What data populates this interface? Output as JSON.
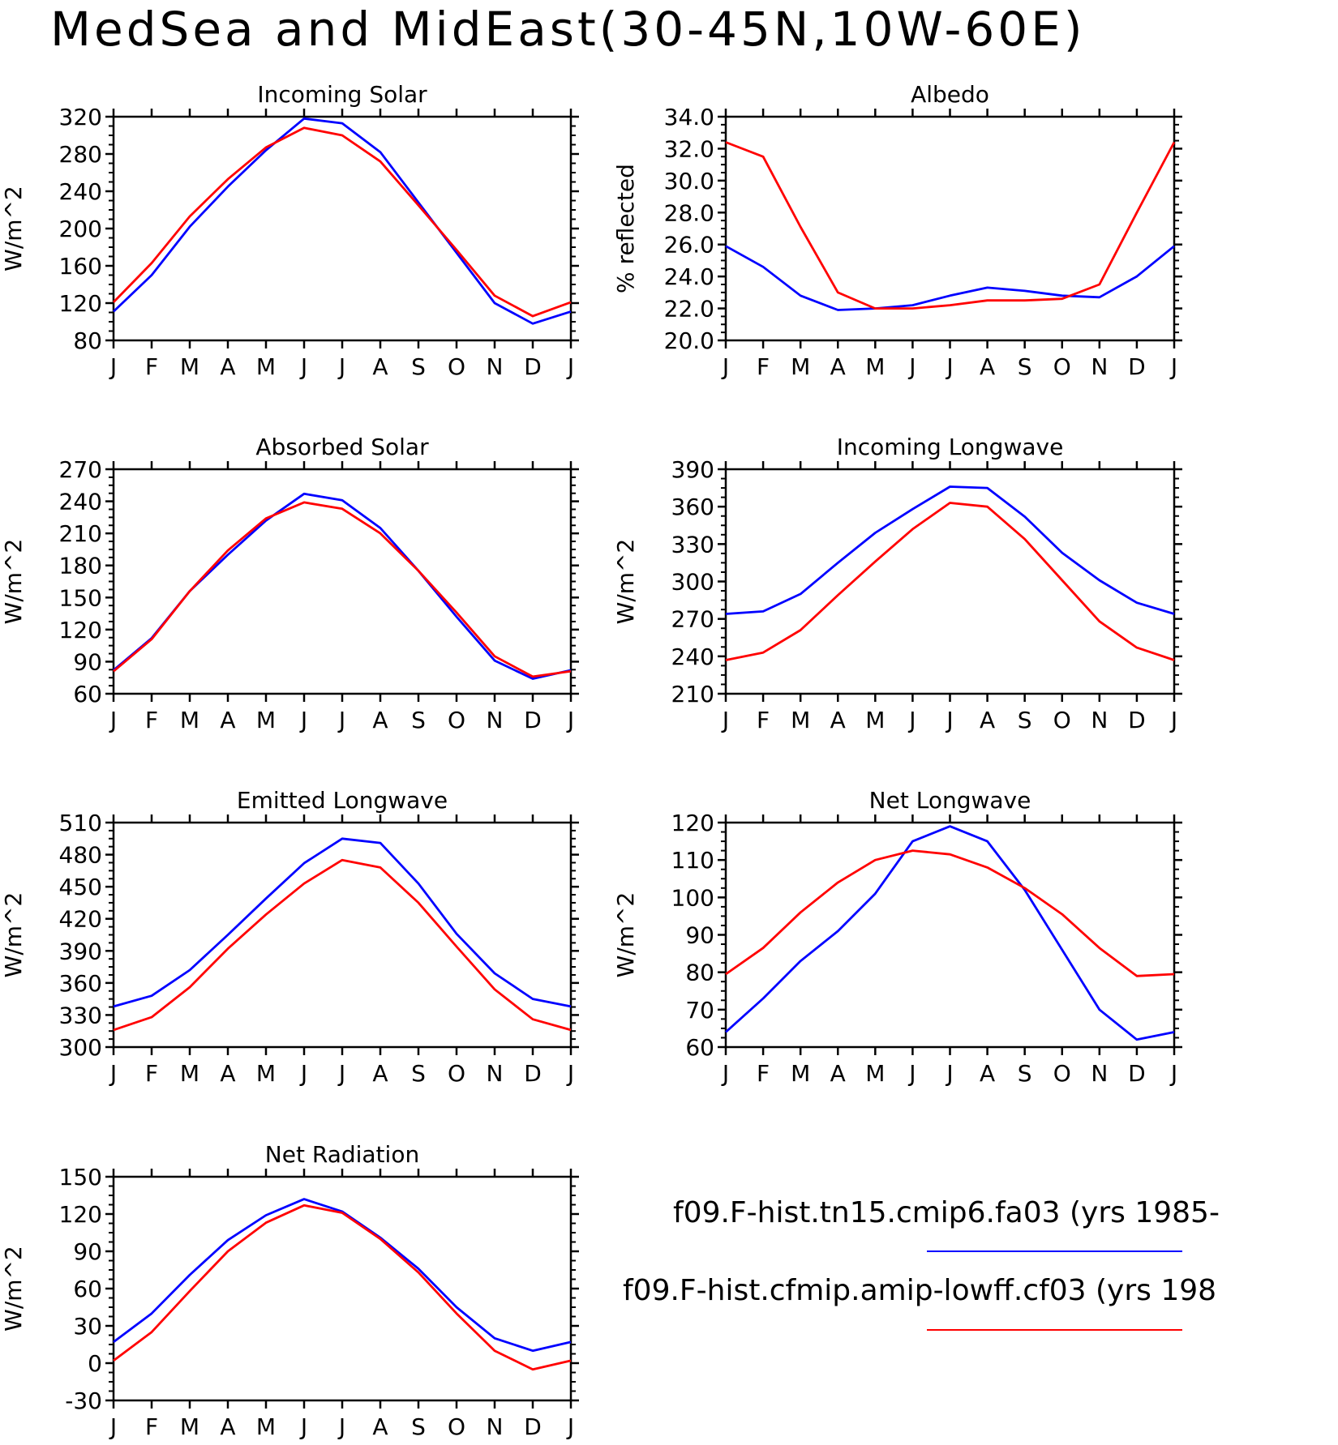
{
  "title": "MedSea and MidEast(30-45N,10W-60E)",
  "colors": {
    "case1": "#0000ff",
    "case2": "#ff0000"
  },
  "legend": [
    {
      "label": "f09.F-hist.tn15.cmip6.fa03 (yrs 1985-",
      "color": "#0000ff"
    },
    {
      "label": "f09.F-hist.cfmip.amip-lowff.cf03 (yrs 198",
      "color": "#ff0000"
    }
  ],
  "chart_data": [
    {
      "type": "line",
      "title": "Incoming Solar",
      "ylabel": "W/m^2",
      "x": [
        "J",
        "F",
        "M",
        "A",
        "M",
        "J",
        "J",
        "A",
        "S",
        "O",
        "N",
        "D",
        "J"
      ],
      "ylim": [
        80,
        320
      ],
      "yticks": [
        "80",
        "120",
        "160",
        "200",
        "240",
        "280",
        "320"
      ],
      "series": [
        {
          "color": "#0000ff",
          "values": [
            111,
            150,
            202,
            245,
            284,
            318,
            313,
            282,
            228,
            174,
            120,
            98,
            111
          ]
        },
        {
          "color": "#ff0000",
          "values": [
            121,
            163,
            213,
            253,
            287,
            308,
            300,
            272,
            225,
            177,
            128,
            106,
            121
          ]
        }
      ]
    },
    {
      "type": "line",
      "title": "Albedo",
      "ylabel": "% reflected",
      "x": [
        "J",
        "F",
        "M",
        "A",
        "M",
        "J",
        "J",
        "A",
        "S",
        "O",
        "N",
        "D",
        "J"
      ],
      "ylim": [
        20,
        34
      ],
      "yticks": [
        "20.0",
        "22.0",
        "24.0",
        "26.0",
        "28.0",
        "30.0",
        "32.0",
        "34.0"
      ],
      "series": [
        {
          "color": "#0000ff",
          "values": [
            25.9,
            24.6,
            22.8,
            21.9,
            22.0,
            22.2,
            22.8,
            23.3,
            23.1,
            22.8,
            22.7,
            24.0,
            25.9
          ]
        },
        {
          "color": "#ff0000",
          "values": [
            32.4,
            31.5,
            27.1,
            23.0,
            22.0,
            22.0,
            22.2,
            22.5,
            22.5,
            22.6,
            23.5,
            28.0,
            32.4
          ]
        }
      ]
    },
    {
      "type": "line",
      "title": "Absorbed Solar",
      "ylabel": "W/m^2",
      "x": [
        "J",
        "F",
        "M",
        "A",
        "M",
        "J",
        "J",
        "A",
        "S",
        "O",
        "N",
        "D",
        "J"
      ],
      "ylim": [
        60,
        270
      ],
      "yticks": [
        "60",
        "90",
        "120",
        "150",
        "180",
        "210",
        "240",
        "270"
      ],
      "series": [
        {
          "color": "#0000ff",
          "values": [
            82,
            112,
            156,
            190,
            222,
            247,
            241,
            215,
            175,
            132,
            91,
            74,
            82
          ]
        },
        {
          "color": "#ff0000",
          "values": [
            81,
            111,
            156,
            194,
            224,
            239,
            233,
            210,
            175,
            136,
            95,
            76,
            81
          ]
        }
      ]
    },
    {
      "type": "line",
      "title": "Incoming Longwave",
      "ylabel": "W/m^2",
      "x": [
        "J",
        "F",
        "M",
        "A",
        "M",
        "J",
        "J",
        "A",
        "S",
        "O",
        "N",
        "D",
        "J"
      ],
      "ylim": [
        210,
        390
      ],
      "yticks": [
        "210",
        "240",
        "270",
        "300",
        "330",
        "360",
        "390"
      ],
      "series": [
        {
          "color": "#0000ff",
          "values": [
            274,
            276,
            290,
            315,
            339,
            358,
            376,
            375,
            352,
            323,
            301,
            283,
            274
          ]
        },
        {
          "color": "#ff0000",
          "values": [
            237,
            243,
            261,
            289,
            316,
            342,
            363,
            360,
            334,
            301,
            268,
            247,
            237
          ]
        }
      ]
    },
    {
      "type": "line",
      "title": "Emitted Longwave",
      "ylabel": "W/m^2",
      "x": [
        "J",
        "F",
        "M",
        "A",
        "M",
        "J",
        "J",
        "A",
        "S",
        "O",
        "N",
        "D",
        "J"
      ],
      "ylim": [
        300,
        510
      ],
      "yticks": [
        "300",
        "330",
        "360",
        "390",
        "420",
        "450",
        "480",
        "510"
      ],
      "series": [
        {
          "color": "#0000ff",
          "values": [
            338,
            348,
            372,
            405,
            439,
            472,
            495,
            491,
            453,
            406,
            369,
            345,
            338
          ]
        },
        {
          "color": "#ff0000",
          "values": [
            316,
            328,
            356,
            392,
            424,
            453,
            475,
            468,
            435,
            394,
            354,
            326,
            316
          ]
        }
      ]
    },
    {
      "type": "line",
      "title": "Net Longwave",
      "ylabel": "W/m^2",
      "x": [
        "J",
        "F",
        "M",
        "A",
        "M",
        "J",
        "J",
        "A",
        "S",
        "O",
        "N",
        "D",
        "J"
      ],
      "ylim": [
        60,
        120
      ],
      "yticks": [
        "60",
        "70",
        "80",
        "90",
        "100",
        "110",
        "120"
      ],
      "series": [
        {
          "color": "#0000ff",
          "values": [
            64,
            73,
            83,
            91,
            101,
            115,
            119,
            115,
            102,
            86,
            70,
            62,
            64
          ]
        },
        {
          "color": "#ff0000",
          "values": [
            79.5,
            86.5,
            96,
            104,
            110,
            112.5,
            111.5,
            108,
            102.5,
            95.5,
            86.5,
            79,
            79.5
          ]
        }
      ]
    },
    {
      "type": "line",
      "title": "Net Radiation",
      "ylabel": "W/m^2",
      "x": [
        "J",
        "F",
        "M",
        "A",
        "M",
        "J",
        "J",
        "A",
        "S",
        "O",
        "N",
        "D",
        "J"
      ],
      "ylim": [
        -30,
        150
      ],
      "yticks": [
        "-30",
        "0",
        "30",
        "60",
        "90",
        "120",
        "150"
      ],
      "series": [
        {
          "color": "#0000ff",
          "values": [
            17,
            40,
            71,
            99,
            119,
            132,
            122,
            101,
            76,
            45,
            20,
            10,
            17
          ]
        },
        {
          "color": "#ff0000",
          "values": [
            2,
            25,
            58,
            90,
            113,
            127,
            121,
            100,
            73,
            40,
            10,
            -5,
            2
          ]
        }
      ]
    }
  ]
}
